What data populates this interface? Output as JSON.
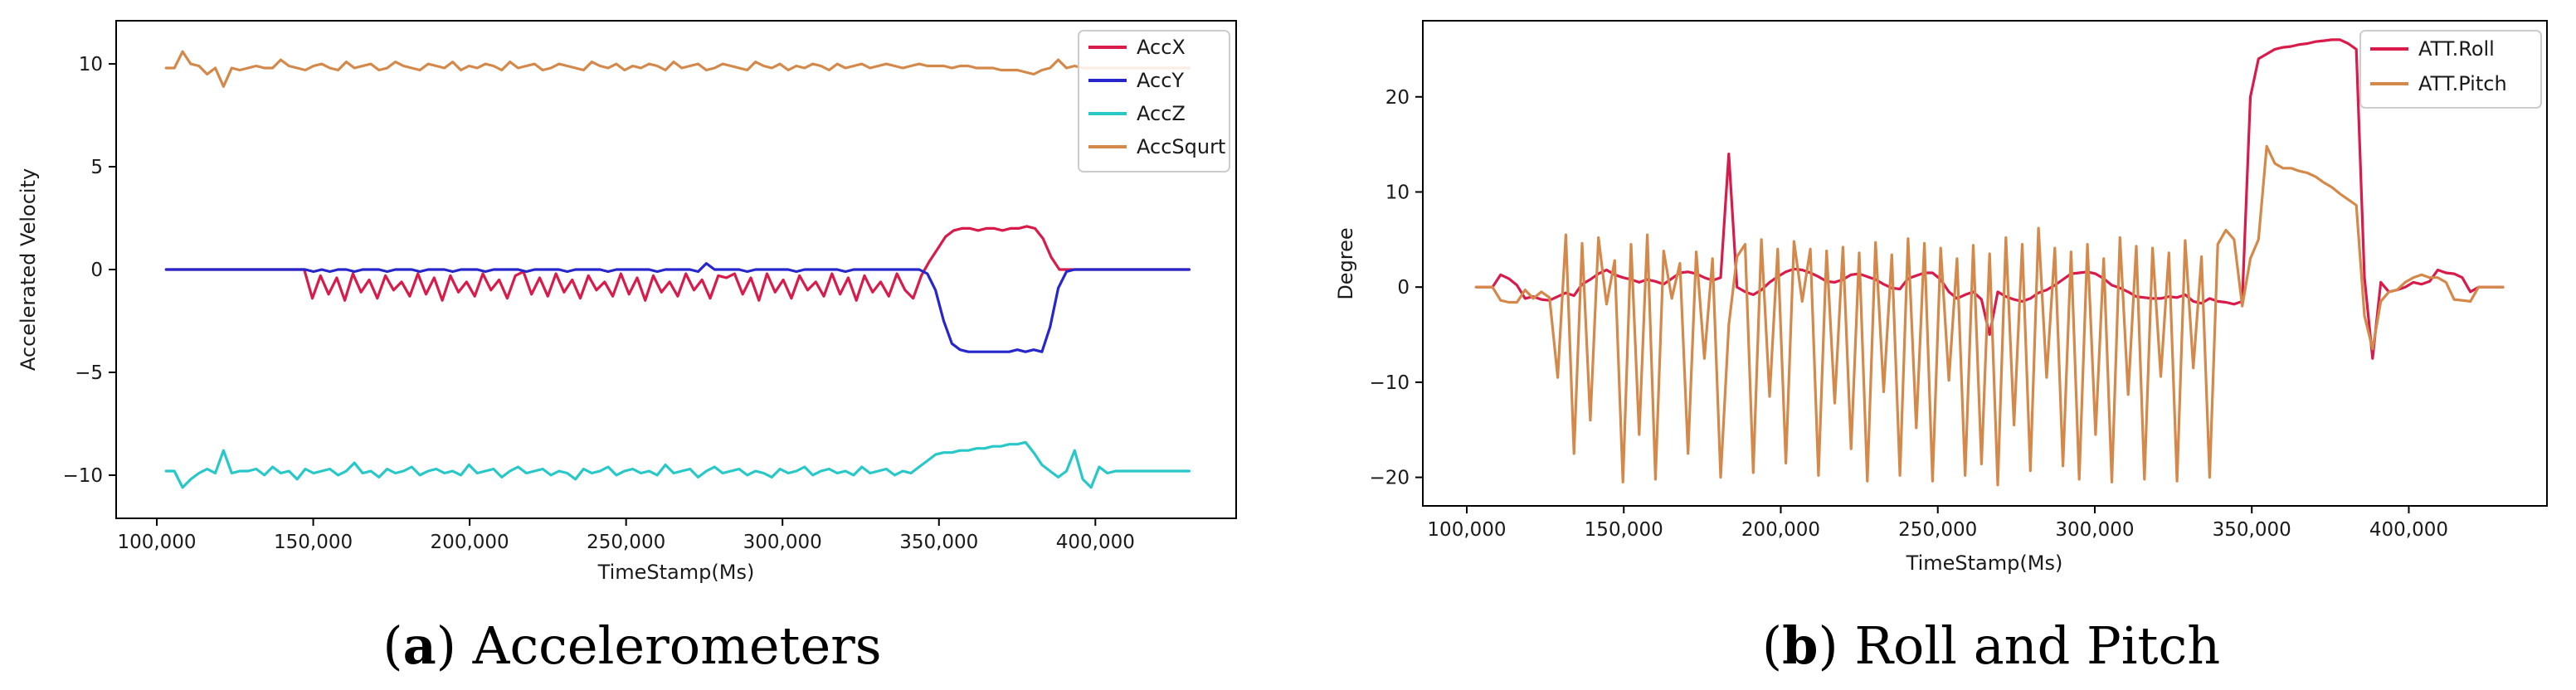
{
  "chart_data": [
    {
      "type": "line",
      "panel_letter": "a",
      "caption": "Accelerometers",
      "xlabel": "TimeStamp(Ms)",
      "ylabel": "Accelerated Velocity",
      "xlim": [
        87000,
        445000
      ],
      "ylim": [
        -12.1,
        12.1
      ],
      "xticks": [
        100000,
        150000,
        200000,
        250000,
        300000,
        350000,
        400000
      ],
      "xtick_labels": [
        "100,000",
        "150,000",
        "200,000",
        "250,000",
        "300,000",
        "350,000",
        "400,000"
      ],
      "yticks": [
        10,
        5,
        0,
        -5,
        -10
      ],
      "ytick_labels": [
        "10",
        "5",
        "0",
        "−5",
        "−10"
      ],
      "legend_position": "top-right",
      "series": [
        {
          "name": "AccX",
          "color": "#d81b4a",
          "x_start": 103000,
          "x_end": 430000,
          "values": [
            0,
            0,
            0,
            0,
            0,
            0,
            0,
            0,
            0,
            0,
            0,
            0,
            0,
            0,
            0,
            0,
            0,
            0,
            -1.4,
            -0.3,
            -1.2,
            -0.4,
            -1.5,
            -0.2,
            -1.1,
            -0.5,
            -1.4,
            -0.3,
            -1.0,
            -0.6,
            -1.3,
            -0.2,
            -1.2,
            -0.4,
            -1.5,
            -0.3,
            -1.1,
            -0.6,
            -1.3,
            -0.2,
            -1.0,
            -0.5,
            -1.4,
            -0.3,
            -0.1,
            -1.2,
            -0.4,
            -1.3,
            -0.2,
            -1.1,
            -0.5,
            -1.4,
            -0.3,
            -1.0,
            -0.6,
            -1.3,
            -0.2,
            -1.2,
            -0.4,
            -1.5,
            -0.3,
            -1.1,
            -0.6,
            -1.3,
            -0.2,
            -1.0,
            -0.5,
            -1.4,
            -0.3,
            -0.4,
            -0.2,
            -1.2,
            -0.4,
            -1.5,
            -0.2,
            -1.1,
            -0.5,
            -1.4,
            -0.3,
            -1.0,
            -0.6,
            -1.3,
            -0.2,
            -1.2,
            -0.4,
            -1.5,
            -0.3,
            -1.1,
            -0.6,
            -1.3,
            -0.2,
            -1.0,
            -1.4,
            -0.3,
            0.4,
            1.0,
            1.6,
            1.9,
            2.0,
            2.0,
            1.9,
            2.0,
            2.0,
            1.9,
            2.0,
            2.0,
            2.1,
            2.0,
            1.5,
            0.6,
            0,
            0,
            0,
            0,
            0,
            0,
            0,
            0,
            0,
            0,
            0,
            0,
            0,
            0,
            0,
            0,
            0
          ]
        },
        {
          "name": "AccY",
          "color": "#2626cc",
          "x_start": 103000,
          "x_end": 430000,
          "values": [
            0,
            0,
            0,
            0,
            0,
            0,
            0,
            0,
            0,
            0,
            0,
            0,
            0,
            0,
            0,
            0,
            0,
            0,
            -0.1,
            0,
            -0.1,
            0,
            0,
            -0.1,
            0,
            0,
            0,
            -0.1,
            0,
            0,
            0,
            -0.1,
            0,
            0,
            0,
            -0.1,
            0,
            0,
            0,
            -0.1,
            0,
            0,
            0,
            0,
            -0.1,
            0,
            0,
            0,
            0,
            -0.1,
            0,
            0,
            0,
            0,
            -0.1,
            0,
            0,
            0,
            0,
            0,
            -0.1,
            0,
            0,
            0,
            0,
            -0.1,
            0.3,
            0,
            0,
            0,
            0,
            -0.1,
            0,
            0,
            0,
            0,
            0,
            -0.1,
            0,
            0,
            0,
            0,
            0,
            -0.1,
            0,
            0,
            0,
            0,
            0,
            0,
            0,
            0,
            0,
            -0.2,
            -1.0,
            -2.5,
            -3.6,
            -3.9,
            -4.0,
            -4.0,
            -4.0,
            -4.0,
            -4.0,
            -4.0,
            -3.9,
            -4.0,
            -3.9,
            -4.0,
            -2.8,
            -0.9,
            -0.1,
            0,
            0,
            0,
            0,
            0,
            0,
            0,
            0,
            0,
            0,
            0,
            0,
            0,
            0,
            0
          ]
        },
        {
          "name": "AccZ",
          "color": "#28c8c8",
          "x_start": 103000,
          "x_end": 430000,
          "values": [
            -9.8,
            -9.8,
            -10.6,
            -10.2,
            -9.9,
            -9.7,
            -9.9,
            -8.8,
            -9.9,
            -9.8,
            -9.8,
            -9.7,
            -10.0,
            -9.6,
            -9.9,
            -9.8,
            -10.2,
            -9.7,
            -9.9,
            -9.8,
            -9.7,
            -10.0,
            -9.8,
            -9.4,
            -9.9,
            -9.8,
            -10.1,
            -9.7,
            -9.9,
            -9.8,
            -9.6,
            -10.0,
            -9.8,
            -9.7,
            -9.9,
            -9.8,
            -10.0,
            -9.5,
            -9.9,
            -9.8,
            -9.7,
            -10.1,
            -9.8,
            -9.6,
            -9.9,
            -9.8,
            -9.7,
            -10.0,
            -9.8,
            -9.9,
            -10.2,
            -9.7,
            -9.9,
            -9.8,
            -9.6,
            -10.0,
            -9.8,
            -9.7,
            -9.9,
            -9.8,
            -10.0,
            -9.5,
            -9.9,
            -9.8,
            -9.7,
            -10.1,
            -9.8,
            -9.6,
            -9.9,
            -9.8,
            -9.7,
            -10.0,
            -9.8,
            -9.9,
            -10.1,
            -9.7,
            -9.9,
            -9.8,
            -9.6,
            -10.0,
            -9.8,
            -9.7,
            -9.9,
            -9.8,
            -10.0,
            -9.6,
            -9.9,
            -9.8,
            -9.7,
            -10.0,
            -9.8,
            -9.9,
            -9.6,
            -9.3,
            -9.0,
            -8.9,
            -8.9,
            -8.8,
            -8.8,
            -8.7,
            -8.7,
            -8.6,
            -8.6,
            -8.5,
            -8.5,
            -8.4,
            -8.9,
            -9.5,
            -9.8,
            -10.1,
            -9.8,
            -8.8,
            -10.2,
            -10.6,
            -9.6,
            -9.9,
            -9.8,
            -9.8,
            -9.8,
            -9.8,
            -9.8,
            -9.8,
            -9.8,
            -9.8,
            -9.8,
            -9.8
          ]
        },
        {
          "name": "AccSqurt",
          "color": "#d4894a",
          "x_start": 103000,
          "x_end": 430000,
          "values": [
            9.8,
            9.8,
            10.6,
            10.0,
            9.9,
            9.5,
            9.8,
            8.9,
            9.8,
            9.7,
            9.8,
            9.9,
            9.8,
            9.8,
            10.2,
            9.9,
            9.8,
            9.7,
            9.9,
            10.0,
            9.8,
            9.7,
            10.1,
            9.8,
            9.9,
            10.0,
            9.7,
            9.8,
            10.1,
            9.9,
            9.8,
            9.7,
            10.0,
            9.9,
            9.8,
            10.1,
            9.7,
            9.9,
            9.8,
            10.0,
            9.9,
            9.7,
            10.1,
            9.8,
            9.9,
            10.0,
            9.7,
            9.8,
            10.0,
            9.9,
            9.8,
            9.7,
            10.1,
            9.9,
            9.8,
            10.0,
            9.7,
            9.9,
            9.8,
            10.0,
            9.9,
            9.7,
            10.1,
            9.8,
            9.9,
            10.0,
            9.7,
            9.8,
            10.0,
            9.9,
            9.8,
            9.7,
            10.1,
            9.9,
            9.8,
            10.0,
            9.7,
            9.9,
            9.8,
            10.0,
            9.9,
            9.7,
            10.0,
            9.8,
            9.9,
            10.0,
            9.8,
            9.9,
            10.0,
            9.9,
            9.8,
            9.9,
            10.0,
            9.9,
            9.9,
            9.9,
            9.8,
            9.9,
            9.9,
            9.8,
            9.8,
            9.8,
            9.7,
            9.7,
            9.7,
            9.6,
            9.5,
            9.7,
            9.8,
            10.2,
            9.8,
            9.9,
            9.8,
            9.8,
            9.8,
            9.8,
            9.8,
            9.8,
            9.8,
            9.8,
            9.8,
            9.8,
            9.8,
            9.8,
            9.8,
            9.8
          ]
        }
      ]
    },
    {
      "type": "line",
      "panel_letter": "b",
      "caption": "Roll and Pitch",
      "xlabel": "TimeStamp(Ms)",
      "ylabel": "Degree",
      "xlim": [
        86000,
        444000
      ],
      "ylim": [
        -23,
        28
      ],
      "xticks": [
        100000,
        150000,
        200000,
        250000,
        300000,
        350000,
        400000
      ],
      "xtick_labels": [
        "100,000",
        "150,000",
        "200,000",
        "250,000",
        "300,000",
        "350,000",
        "400,000"
      ],
      "yticks": [
        20,
        10,
        0,
        -10,
        -20
      ],
      "ytick_labels": [
        "20",
        "10",
        "0",
        "−10",
        "−20"
      ],
      "legend_position": "top-right",
      "series": [
        {
          "name": "ATT.Roll",
          "color": "#d81b4a",
          "x_start": 103000,
          "x_end": 430000,
          "values": [
            0,
            0,
            0,
            1.3,
            0.9,
            0.2,
            -1.2,
            -1.0,
            -1.3,
            -1.4,
            -1.0,
            -0.6,
            -0.9,
            0.3,
            0.8,
            1.4,
            1.8,
            1.3,
            1.0,
            0.8,
            0.5,
            0.8,
            0.6,
            0.3,
            0.9,
            1.5,
            1.6,
            1.4,
            1.0,
            0.7,
            1.0,
            14,
            0,
            -0.5,
            -0.8,
            -0.3,
            0.5,
            1.1,
            1.6,
            1.9,
            1.8,
            1.5,
            1.1,
            0.6,
            0.5,
            0.8,
            1.3,
            1.4,
            1.1,
            0.8,
            0.3,
            -0.1,
            -0.2,
            0.9,
            1.2,
            1.5,
            1.5,
            0.8,
            -0.5,
            -1.2,
            -0.8,
            -0.5,
            -1.3,
            -5.0,
            -0.5,
            -1.0,
            -1.3,
            -1.5,
            -1.2,
            -0.6,
            -0.3,
            0.2,
            0.8,
            1.4,
            1.5,
            1.6,
            1.4,
            0.9,
            0.2,
            -0.1,
            -0.5,
            -1.0,
            -1.1,
            -1.2,
            -1.2,
            -1.0,
            -1.1,
            -0.8,
            -1.5,
            -1.7,
            -1.2,
            -1.5,
            -1.6,
            -1.8,
            -1.5,
            20,
            24,
            24.5,
            25,
            25.2,
            25.3,
            25.5,
            25.6,
            25.8,
            25.9,
            26,
            26,
            25.6,
            25,
            1,
            -7.5,
            0.5,
            -0.5,
            -0.3,
            0,
            0.5,
            0.3,
            0.6,
            1.8,
            1.5,
            1.4,
            1.0,
            -0.5,
            0,
            0,
            0,
            0
          ]
        },
        {
          "name": "ATT.Pitch",
          "color": "#d4894a",
          "x_start": 103000,
          "x_end": 430000,
          "values": [
            0,
            0,
            0,
            -1.4,
            -1.6,
            -1.6,
            -0.3,
            -1.2,
            -0.5,
            -1.1,
            -9.5,
            5.5,
            -17.5,
            4.6,
            -14,
            5.2,
            -1.8,
            2.8,
            -20.5,
            4.5,
            -15.5,
            5.5,
            -20.2,
            3.8,
            -1.2,
            2.5,
            -17.5,
            3.7,
            -7.5,
            3.0,
            -20,
            -4,
            3.2,
            4.5,
            -19.5,
            5.0,
            -11.5,
            4.0,
            -18.5,
            4.8,
            -1.5,
            4.0,
            -19.8,
            3.8,
            -12.2,
            4.2,
            -17,
            3.6,
            -20.4,
            4.7,
            -11,
            3.4,
            -19.8,
            5.1,
            -14.8,
            4.6,
            -20.4,
            4.1,
            -9.8,
            3.0,
            -19.8,
            4.4,
            -18.6,
            3.5,
            -20.8,
            5.2,
            -14.5,
            4.5,
            -19.3,
            6.2,
            -9.5,
            4.1,
            -18.8,
            3.7,
            -20.2,
            4.5,
            -15.5,
            3.0,
            -20.5,
            5.2,
            -11.3,
            4.3,
            -20.2,
            4.1,
            -9.4,
            3.6,
            -20.4,
            4.9,
            -8.5,
            3.2,
            -20,
            4.5,
            6,
            5,
            -2,
            3,
            5,
            14.8,
            13,
            12.5,
            12.5,
            12.2,
            12,
            11.6,
            11,
            10.5,
            9.8,
            9.2,
            8.6,
            -3,
            -6.5,
            -1.5,
            -0.5,
            -0.3,
            0.5,
            1.0,
            1.3,
            1.0,
            1.0,
            0.5,
            -1.3,
            -1.4,
            -1.5,
            0,
            0,
            0,
            0
          ]
        }
      ]
    }
  ]
}
